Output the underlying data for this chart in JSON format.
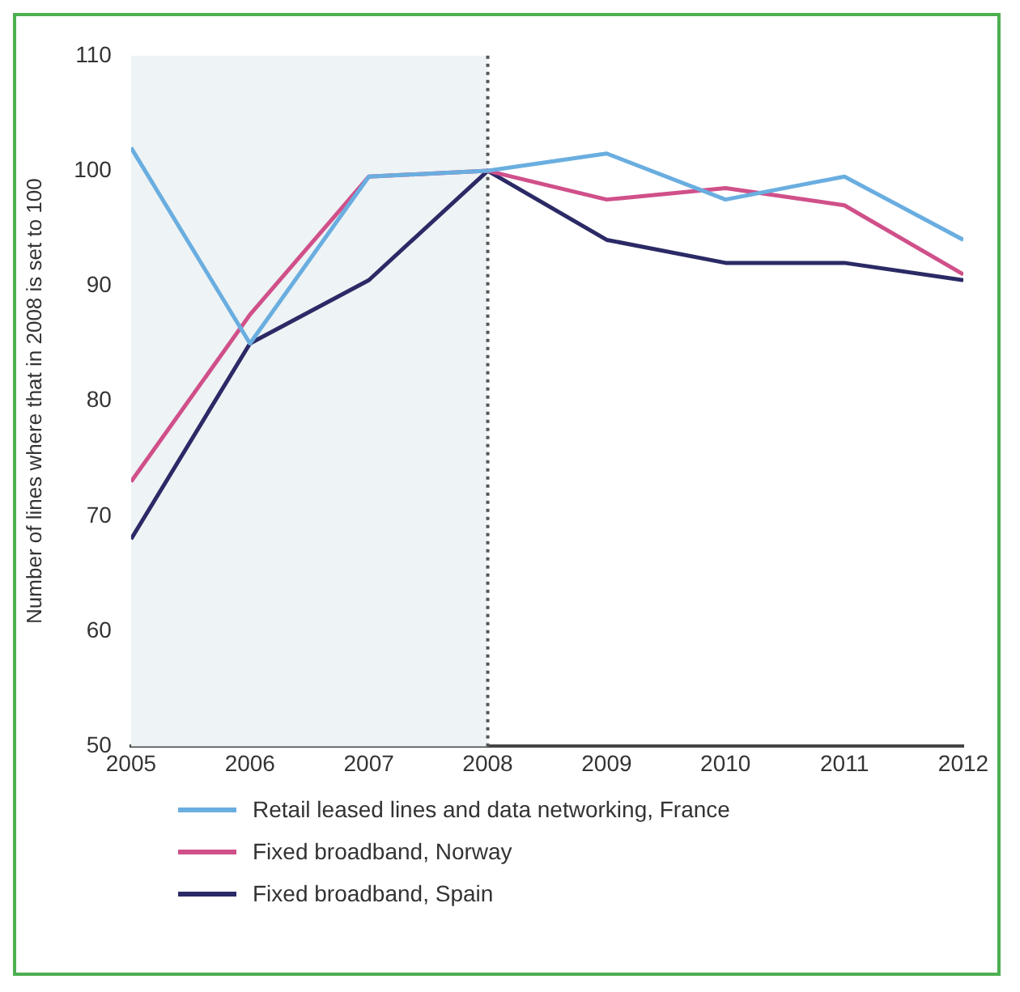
{
  "chart_data": {
    "type": "line",
    "ylabel": "Number of lines where that in 2008 is set to 100",
    "x": [
      2005,
      2006,
      2007,
      2008,
      2009,
      2010,
      2011,
      2012
    ],
    "xlim": [
      2005,
      2012
    ],
    "xticks": [
      2005,
      2006,
      2007,
      2008,
      2009,
      2010,
      2011,
      2012
    ],
    "ylim": [
      50,
      110
    ],
    "yticks": [
      50,
      60,
      70,
      80,
      90,
      100,
      110
    ],
    "series": [
      {
        "name": "Retail leased lines and data networking, France",
        "color": "#6aaee0",
        "values": [
          102,
          85,
          99.5,
          100,
          101.5,
          97.5,
          99.5,
          94
        ]
      },
      {
        "name": "Fixed broadband, Norway",
        "color": "#d0508a",
        "values": [
          73,
          87.5,
          99.5,
          100,
          97.5,
          98.5,
          97,
          91
        ]
      },
      {
        "name": "Fixed broadband, Spain",
        "color": "#2b2a66",
        "values": [
          68,
          85,
          90.5,
          100,
          94,
          92,
          92,
          90.5
        ]
      }
    ],
    "bands": [
      {
        "axis": "x",
        "from": 2005,
        "to": 2008,
        "color": "#eef3f5"
      }
    ],
    "ref_lines": [
      {
        "axis": "x",
        "value": 2008,
        "color": "#555555",
        "line_style": "dotted"
      }
    ],
    "grid": false,
    "legend": "bottom",
    "marker": "none",
    "line_style": "solid"
  }
}
